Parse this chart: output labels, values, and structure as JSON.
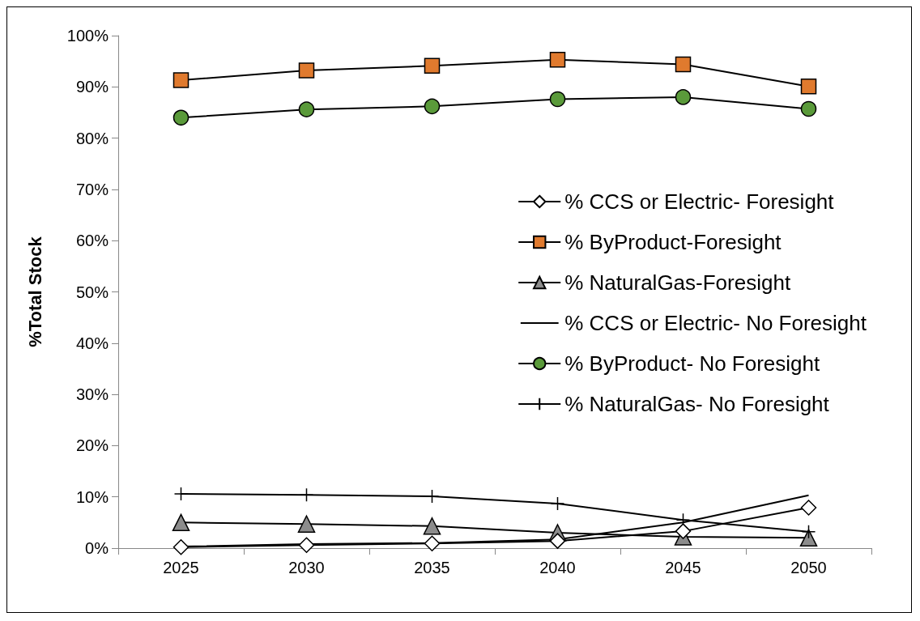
{
  "chart_data": {
    "type": "line",
    "ylabel": "%Total Stock",
    "categories": [
      "2025",
      "2030",
      "2035",
      "2040",
      "2045",
      "2050"
    ],
    "series": [
      {
        "name": "% CCS or Electric- Foresight",
        "color": "#ffffff",
        "marker": "diamond",
        "values": [
          0.2,
          0.6,
          0.9,
          1.4,
          3.3,
          7.9
        ]
      },
      {
        "name": "% ByProduct-Foresight",
        "color": "#e07a2e",
        "marker": "square",
        "values": [
          91.3,
          93.2,
          94.1,
          95.3,
          94.4,
          90.1
        ]
      },
      {
        "name": "% NaturalGas-Foresight",
        "color": "#8c8c8c",
        "marker": "triangle",
        "values": [
          5.0,
          4.7,
          4.3,
          3.0,
          2.2,
          2.0
        ]
      },
      {
        "name": "% CCS or Electric- No Foresight",
        "color": "#000000",
        "marker": "none",
        "values": [
          0.3,
          0.8,
          1.0,
          1.7,
          5.0,
          10.3
        ]
      },
      {
        "name": "% ByProduct- No Foresight",
        "color": "#5a9a3a",
        "marker": "circle",
        "values": [
          84.0,
          85.6,
          86.2,
          87.6,
          88.0,
          85.7
        ]
      },
      {
        "name": "% NaturalGas- No Foresight",
        "color": "#000000",
        "marker": "cross",
        "values": [
          10.6,
          10.4,
          10.1,
          8.7,
          5.5,
          3.2
        ]
      }
    ],
    "ylim": [
      0,
      100
    ],
    "yticks": [
      {
        "value": 0,
        "label": "0%"
      },
      {
        "value": 10,
        "label": "10%"
      },
      {
        "value": 20,
        "label": "20%"
      },
      {
        "value": 30,
        "label": "30%"
      },
      {
        "value": 40,
        "label": "40%"
      },
      {
        "value": 50,
        "label": "50%"
      },
      {
        "value": 60,
        "label": "60%"
      },
      {
        "value": 70,
        "label": "70%"
      },
      {
        "value": 80,
        "label": "80%"
      },
      {
        "value": 90,
        "label": "90%"
      },
      {
        "value": 100,
        "label": "100%"
      }
    ],
    "grid": false,
    "legend": "right"
  }
}
